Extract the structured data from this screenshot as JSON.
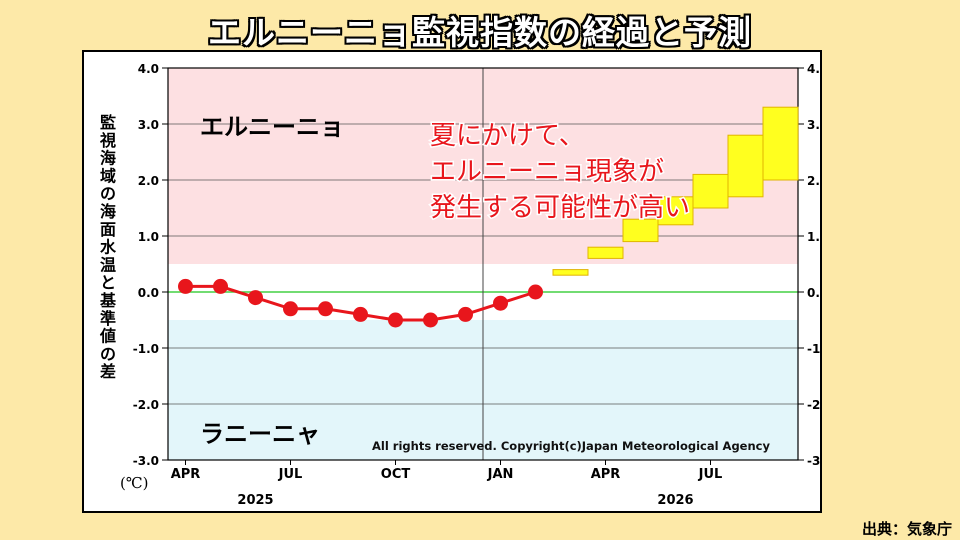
{
  "title": "エルニーニョ監視指数の経過と予測",
  "source": "出典：気象庁",
  "chart_data": {
    "type": "line",
    "ylabel": "監視海域の海面水温と基準値の差",
    "unit": "(℃)",
    "ylim": [
      -3.0,
      4.0
    ],
    "yticks": [
      "4.0",
      "3.0",
      "2.0",
      "1.0",
      "0.0",
      "-1.0",
      "-2.0",
      "-3.0"
    ],
    "month_labels": [
      {
        "label": "APR",
        "index": 0
      },
      {
        "label": "JUL",
        "index": 3
      },
      {
        "label": "OCT",
        "index": 6
      },
      {
        "label": "JAN",
        "index": 9
      },
      {
        "label": "APR",
        "index": 12
      },
      {
        "label": "JUL",
        "index": 15
      }
    ],
    "year_labels": [
      {
        "label": "2025",
        "index": 2
      },
      {
        "label": "2026",
        "index": 14
      }
    ],
    "year_divider_index": 8.5,
    "observed": [
      {
        "month": "2025-04",
        "value": 0.1
      },
      {
        "month": "2025-05",
        "value": 0.1
      },
      {
        "month": "2025-06",
        "value": -0.1
      },
      {
        "month": "2025-07",
        "value": -0.3
      },
      {
        "month": "2025-08",
        "value": -0.3
      },
      {
        "month": "2025-09",
        "value": -0.4
      },
      {
        "month": "2025-10",
        "value": -0.5
      },
      {
        "month": "2025-11",
        "value": -0.5
      },
      {
        "month": "2025-12",
        "value": -0.4
      },
      {
        "month": "2026-01",
        "value": -0.2
      },
      {
        "month": "2026-02",
        "value": 0.0
      }
    ],
    "forecast_ranges": [
      {
        "month": "2026-03",
        "low": 0.3,
        "high": 0.4
      },
      {
        "month": "2026-04",
        "low": 0.6,
        "high": 0.8
      },
      {
        "month": "2026-05",
        "low": 0.9,
        "high": 1.3
      },
      {
        "month": "2026-06",
        "low": 1.2,
        "high": 1.7
      },
      {
        "month": "2026-07",
        "low": 1.5,
        "high": 2.1
      },
      {
        "month": "2026-08",
        "low": 1.7,
        "high": 2.8
      },
      {
        "month": "2026-09",
        "low": 2.0,
        "high": 3.3
      }
    ],
    "el_nino_threshold": 0.5,
    "la_nina_threshold": -0.5,
    "zones": {
      "el_nino_label": "エルニーニョ",
      "la_nina_label": "ラニーニャ"
    },
    "annotation_lines": [
      "夏にかけて、",
      "エルニーニョ現象が",
      "発生する可能性が高い"
    ],
    "copyright": "All rights reserved. Copyright(c)Japan Meteorological Agency",
    "grid": true,
    "colors": {
      "el_nino_zone": "#fde0e2",
      "la_nina_zone": "#e3f6fa",
      "observed_line": "#e8161c",
      "forecast_fill": "#ffff1f",
      "forecast_stroke": "#e0b400",
      "zero_line": "#44d144",
      "annotation": "#e8161c"
    }
  }
}
